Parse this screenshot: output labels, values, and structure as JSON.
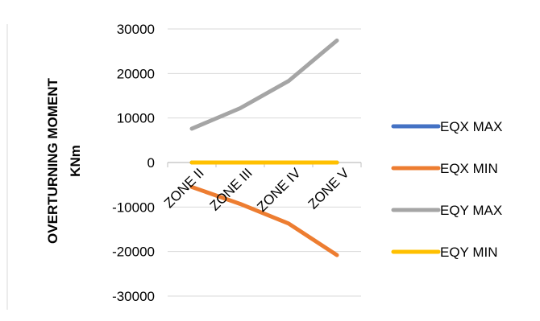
{
  "chart_data": {
    "type": "line",
    "title": "",
    "xlabel": "",
    "ylabel": "OVERTURNING MOMENT",
    "ylabel_unit": "KNm",
    "categories": [
      "ZONE II",
      "ZONE III",
      "ZONE IV",
      "ZONE V"
    ],
    "ylim": [
      -30000,
      30000
    ],
    "yticks": [
      "30000",
      "20000",
      "10000",
      "0",
      "-10000",
      "-20000",
      "-30000"
    ],
    "grid": true,
    "legend_position": "right",
    "series": [
      {
        "name": "EQX MAX",
        "color": "#4472C4",
        "values": [
          0,
          0,
          0,
          0
        ]
      },
      {
        "name": "EQX MIN",
        "color": "#ED7D31",
        "values": [
          -5500,
          -9300,
          -13700,
          -20800
        ]
      },
      {
        "name": "EQY MAX",
        "color": "#A5A5A5",
        "values": [
          7600,
          12200,
          18300,
          27400
        ]
      },
      {
        "name": "EQY MIN",
        "color": "#FFC000",
        "values": [
          0,
          0,
          0,
          0
        ]
      }
    ]
  }
}
